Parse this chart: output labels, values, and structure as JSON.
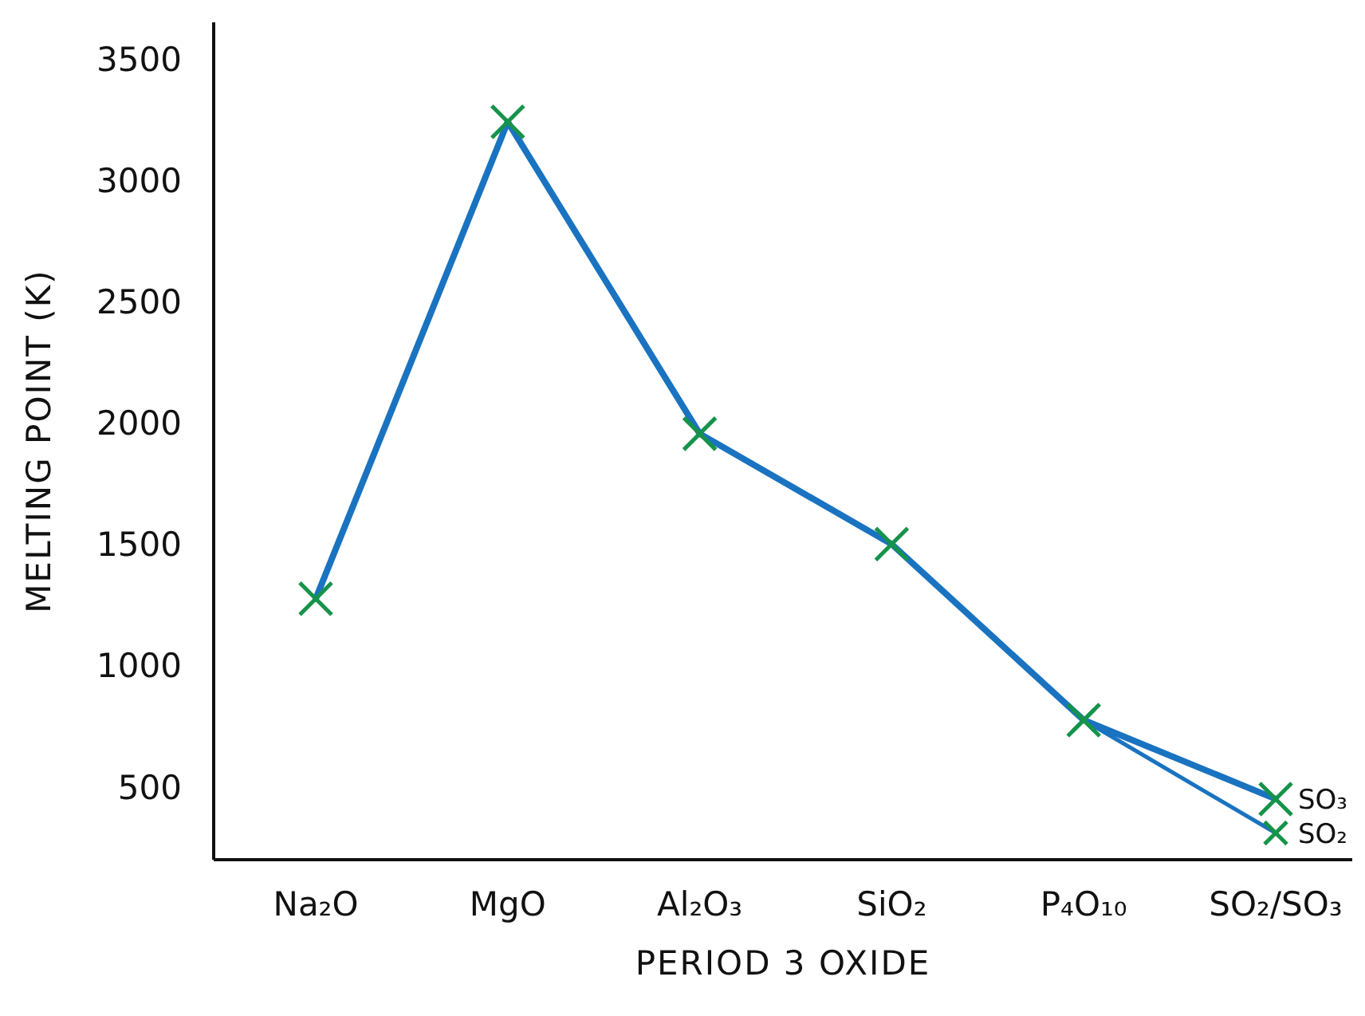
{
  "chart_data": {
    "type": "line",
    "xlabel": "PERIOD 3 OXIDE",
    "ylabel": "MELTING POINT (K)",
    "categories": [
      "Na₂O",
      "MgO",
      "Al₂O₃",
      "SiO₂",
      "P₄O₁₀",
      "SO₂/SO₃"
    ],
    "series": [
      {
        "color": "#1a73c0",
        "colors": [
          "#16934a",
          "#16934a",
          "#16934a",
          "#16934a",
          "#16934a",
          "#16934a"
        ],
        "values": [
          1275,
          3240,
          1955,
          1500,
          775,
          450
        ]
      },
      {
        "color": "#1a73c0",
        "colors": [
          null,
          null,
          null,
          null,
          "#16934a",
          "#16934a"
        ],
        "values": [
          null,
          null,
          null,
          null,
          775,
          310
        ]
      }
    ],
    "ylim": [
      200,
      3650
    ],
    "yticks": [
      500,
      1000,
      1500,
      2000,
      2500,
      3000,
      3500
    ],
    "marker": "cross",
    "line_style": "solid",
    "grid": false,
    "legend": false,
    "annotations": [
      {
        "text": "SO₃",
        "x": "SO₂/SO₃",
        "y": 450
      },
      {
        "text": "SO₂",
        "x": "SO₂/SO₃",
        "y": 310
      }
    ]
  }
}
